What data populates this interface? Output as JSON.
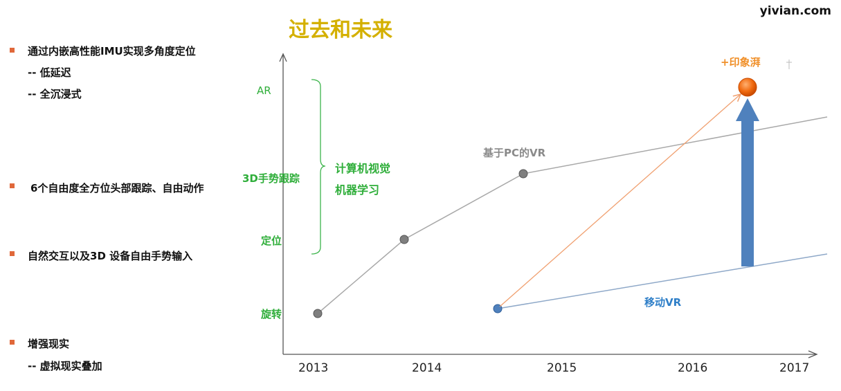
{
  "watermark": "yivian.com",
  "title": "过去和未来",
  "left_list": [
    {
      "text": "通过内嵌高性能IMU实现多角度定位",
      "subs": [
        "-- 低延迟",
        "-- 全沉浸式"
      ]
    },
    {
      "text": "6个自由度全方位头部跟踪、自由动作",
      "subs": []
    },
    {
      "text": "自然交互以及3D 设备自由手势输入",
      "subs": []
    },
    {
      "text": "增强现实",
      "subs": [
        "-- 虚拟现实叠加"
      ]
    }
  ],
  "y_labels": {
    "ar": "AR",
    "gesture": "3D手势跟踪",
    "positioning": "定位",
    "rotation": "旋转"
  },
  "brace_labels": [
    "计算机视觉",
    "机器学习"
  ],
  "series_labels": {
    "pc_vr": "基于PC的VR",
    "mobile_vr": "移动VR",
    "future": "+印象湃"
  },
  "x_ticks": [
    "2013",
    "2014",
    "2015",
    "2016",
    "2017"
  ],
  "colors": {
    "title": "#d4b000",
    "green": "#2fae3a",
    "pc_line": "#a8a8a8",
    "mobile_line": "#8ea8c8",
    "orange": "#f07a2a",
    "blue_arrow": "#4f81bd"
  }
}
